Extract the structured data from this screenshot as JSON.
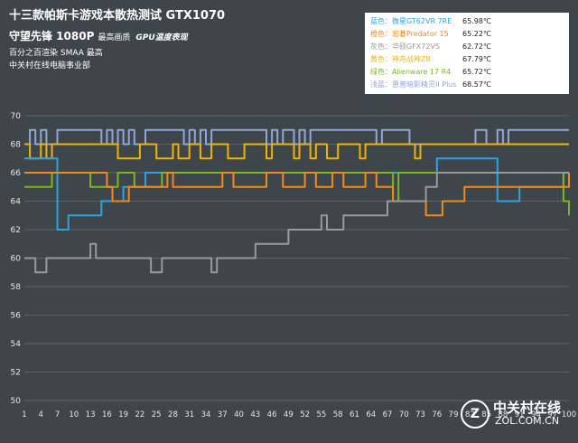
{
  "header": {
    "title": "十三款帕斯卡游戏本散热测试 GTX1070",
    "subtitle": "守望先锋 1080P",
    "subtitle_small": "最高画质",
    "subtitle_italic": "GPU温度表现",
    "line3": "百分之百渲染 SMAA 最高",
    "line4": "中关村在线电脑事业部"
  },
  "legend": [
    {
      "label": "蓝色：微星GT62VR 7RE",
      "value": "65.98℃",
      "color": "#2ea3e3"
    },
    {
      "label": "橙色：宏碁Predator 15",
      "value": "65.22℃",
      "color": "#f08a1c"
    },
    {
      "label": "灰色：华硕GFX72VS",
      "value": "62.72℃",
      "color": "#9a9a9a"
    },
    {
      "label": "黄色：神舟战神Z8",
      "value": "67.79℃",
      "color": "#f0b400"
    },
    {
      "label": "绿色：Alienware 17 R4",
      "value": "65.72℃",
      "color": "#7ab81e"
    },
    {
      "label": "浅蓝：惠普暗影精灵II Plus",
      "value": "68.57℃",
      "color": "#8fa8d8"
    }
  ],
  "logo": {
    "mark": "Z",
    "name": "中关村在线",
    "url": "ZOL.COM.CN"
  },
  "chart_data": {
    "type": "line",
    "ylim": [
      50,
      70
    ],
    "yticks": [
      50,
      52,
      54,
      56,
      58,
      60,
      62,
      64,
      66,
      68,
      70
    ],
    "xtick_labels": [
      "1",
      "4",
      "7",
      "10",
      "13",
      "16",
      "19",
      "22",
      "25",
      "28",
      "31",
      "34",
      "37",
      "40",
      "43",
      "46",
      "49",
      "52",
      "55",
      "58",
      "61",
      "64",
      "67",
      "70",
      "73",
      "76",
      "79",
      "82",
      "85",
      "88",
      "91",
      "94",
      "97",
      "100"
    ],
    "grid": true,
    "series": [
      {
        "name": "浅蓝",
        "color": "#8fa8d8",
        "values": [
          68,
          69,
          68,
          69,
          68,
          68,
          69,
          69,
          69,
          69,
          69,
          69,
          69,
          69,
          68,
          69,
          68,
          69,
          68,
          69,
          68,
          68,
          69,
          69,
          69,
          69,
          69,
          69,
          69,
          68,
          69,
          68,
          69,
          68,
          69,
          69,
          69,
          69,
          69,
          69,
          69,
          69,
          69,
          69,
          68,
          69,
          68,
          69,
          69,
          68,
          69,
          68,
          69,
          69,
          69,
          69,
          69,
          69,
          69,
          69,
          69,
          69,
          69,
          69,
          68,
          69,
          69,
          69,
          69,
          69,
          68,
          68,
          68,
          68,
          68,
          68,
          68,
          68,
          68,
          68,
          68,
          68,
          69,
          69,
          68,
          68,
          69,
          68,
          69,
          69,
          69,
          69,
          69,
          69,
          69,
          69,
          69,
          69,
          69,
          69
        ]
      },
      {
        "name": "黄色",
        "color": "#f0b400",
        "values": [
          68,
          67,
          67,
          68,
          67,
          68,
          68,
          68,
          68,
          68,
          68,
          68,
          68,
          68,
          68,
          68,
          68,
          67,
          67,
          67,
          67,
          68,
          68,
          68,
          67,
          67,
          67,
          68,
          67,
          67,
          68,
          68,
          67,
          67,
          68,
          68,
          68,
          67,
          67,
          67,
          68,
          68,
          68,
          68,
          67,
          68,
          68,
          68,
          68,
          67,
          68,
          68,
          67,
          68,
          68,
          67,
          67,
          68,
          68,
          68,
          68,
          67,
          68,
          68,
          68,
          68,
          68,
          68,
          68,
          68,
          68,
          67,
          68,
          68,
          68,
          68,
          68,
          68,
          68,
          68,
          68,
          68,
          68,
          68,
          68,
          68,
          68,
          68,
          68,
          68,
          68,
          68,
          68,
          68,
          68,
          68,
          68,
          68,
          68,
          68
        ]
      },
      {
        "name": "蓝色",
        "color": "#2ea3e3",
        "values": [
          67,
          67,
          67,
          67,
          67,
          67,
          62,
          62,
          63,
          63,
          63,
          63,
          63,
          63,
          64,
          64,
          64,
          64,
          65,
          65,
          65,
          65,
          66,
          66,
          66,
          66,
          66,
          66,
          66,
          66,
          66,
          66,
          66,
          66,
          66,
          66,
          66,
          66,
          66,
          66,
          66,
          66,
          66,
          66,
          66,
          66,
          66,
          66,
          66,
          66,
          66,
          66,
          66,
          66,
          66,
          66,
          66,
          66,
          66,
          66,
          66,
          66,
          66,
          66,
          66,
          66,
          66,
          66,
          66,
          66,
          66,
          66,
          66,
          66,
          66,
          67,
          67,
          67,
          67,
          67,
          67,
          67,
          67,
          67,
          67,
          67,
          64,
          64,
          64,
          64,
          65,
          65,
          65,
          65,
          65,
          65,
          65,
          65,
          66,
          66
        ]
      },
      {
        "name": "绿色",
        "color": "#7ab81e",
        "values": [
          65,
          65,
          65,
          65,
          65,
          66,
          66,
          66,
          66,
          66,
          66,
          66,
          65,
          65,
          65,
          65,
          65,
          66,
          66,
          66,
          65,
          65,
          65,
          65,
          65,
          66,
          66,
          66,
          66,
          66,
          66,
          66,
          66,
          66,
          66,
          66,
          66,
          66,
          66,
          66,
          66,
          66,
          66,
          66,
          66,
          66,
          66,
          66,
          66,
          66,
          66,
          66,
          66,
          66,
          66,
          66,
          66,
          66,
          66,
          66,
          66,
          66,
          66,
          66,
          66,
          66,
          66,
          64,
          66,
          66,
          66,
          66,
          66,
          66,
          66,
          66,
          66,
          66,
          66,
          66,
          66,
          66,
          66,
          66,
          66,
          66,
          66,
          66,
          66,
          66,
          66,
          66,
          66,
          66,
          66,
          66,
          66,
          66,
          64,
          63
        ]
      },
      {
        "name": "橙色",
        "color": "#f08a1c",
        "values": [
          66,
          66,
          66,
          66,
          66,
          66,
          66,
          66,
          66,
          66,
          66,
          66,
          66,
          66,
          66,
          65,
          64,
          64,
          64,
          65,
          65,
          65,
          65,
          65,
          65,
          65,
          66,
          65,
          65,
          65,
          65,
          65,
          65,
          65,
          65,
          65,
          66,
          66,
          65,
          65,
          65,
          65,
          65,
          65,
          66,
          66,
          66,
          65,
          65,
          65,
          65,
          66,
          66,
          65,
          65,
          65,
          66,
          66,
          65,
          65,
          65,
          65,
          66,
          66,
          65,
          65,
          65,
          64,
          64,
          64,
          64,
          64,
          64,
          63,
          63,
          63,
          64,
          64,
          64,
          64,
          65,
          65,
          65,
          65,
          65,
          65,
          65,
          65,
          65,
          65,
          65,
          65,
          65,
          65,
          65,
          65,
          65,
          65,
          65,
          66
        ]
      },
      {
        "name": "灰色",
        "color": "#9a9a9a",
        "values": [
          60,
          60,
          59,
          59,
          60,
          60,
          60,
          60,
          60,
          60,
          60,
          60,
          61,
          60,
          60,
          60,
          60,
          60,
          60,
          60,
          60,
          60,
          60,
          59,
          59,
          60,
          60,
          60,
          60,
          60,
          60,
          60,
          60,
          60,
          59,
          60,
          60,
          60,
          60,
          60,
          60,
          60,
          61,
          61,
          61,
          61,
          61,
          61,
          62,
          62,
          62,
          62,
          62,
          62,
          63,
          62,
          62,
          62,
          63,
          63,
          63,
          63,
          63,
          63,
          63,
          63,
          64,
          64,
          64,
          64,
          64,
          64,
          64,
          65,
          65,
          66,
          66,
          66,
          66,
          66,
          66,
          66,
          66,
          66,
          66,
          66,
          66,
          66,
          66,
          66,
          66,
          66,
          66,
          66,
          66,
          66,
          66,
          66,
          66,
          66
        ]
      }
    ]
  }
}
